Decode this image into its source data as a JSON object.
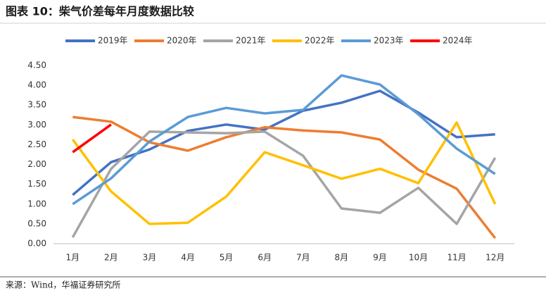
{
  "chart_data": {
    "type": "line",
    "title": "图表 10：柴气价差每年月度数据比较",
    "source": "来源：Wind，华福证券研究所",
    "categories": [
      "1月",
      "2月",
      "3月",
      "4月",
      "5月",
      "6月",
      "7月",
      "8月",
      "9月",
      "10月",
      "11月",
      "12月"
    ],
    "ylim": [
      0,
      4.5
    ],
    "yticks": [
      {
        "value": 0,
        "label": "0.00"
      },
      {
        "value": 0.5,
        "label": "0.50"
      },
      {
        "value": 1,
        "label": "1.00"
      },
      {
        "value": 1.5,
        "label": "1.50"
      },
      {
        "value": 2,
        "label": "2.00"
      },
      {
        "value": 2.5,
        "label": "2.50"
      },
      {
        "value": 3,
        "label": "3.00"
      },
      {
        "value": 3.5,
        "label": "3.50"
      },
      {
        "value": 4,
        "label": "4.00"
      },
      {
        "value": 4.5,
        "label": "4.50"
      }
    ],
    "grid": false,
    "legend": "top",
    "series": [
      {
        "name": "2019年",
        "color": "#4472c4",
        "values": [
          1.23,
          2.06,
          2.38,
          2.85,
          3.01,
          2.88,
          3.36,
          3.56,
          3.86,
          3.31,
          2.69,
          2.76
        ]
      },
      {
        "name": "2020年",
        "color": "#ed7d31",
        "values": [
          3.2,
          3.08,
          2.56,
          2.35,
          2.69,
          2.94,
          2.86,
          2.81,
          2.63,
          1.87,
          1.39,
          0.14
        ]
      },
      {
        "name": "2021年",
        "color": "#a5a5a5",
        "values": [
          0.16,
          1.89,
          2.83,
          2.81,
          2.79,
          2.83,
          2.22,
          0.89,
          0.78,
          1.41,
          0.5,
          2.17
        ]
      },
      {
        "name": "2022年",
        "color": "#ffc000",
        "values": [
          2.63,
          1.32,
          0.5,
          0.53,
          1.19,
          2.31,
          1.98,
          1.64,
          1.89,
          1.53,
          3.06,
          1.0
        ]
      },
      {
        "name": "2023年",
        "color": "#5b9bd5",
        "values": [
          1.0,
          1.65,
          2.58,
          3.2,
          3.43,
          3.29,
          3.38,
          4.25,
          4.02,
          3.27,
          2.4,
          1.76
        ]
      },
      {
        "name": "2024年",
        "color": "#ff0000",
        "values": [
          2.31,
          3.01,
          null,
          null,
          null,
          null,
          null,
          null,
          null,
          null,
          null,
          null
        ]
      }
    ]
  }
}
